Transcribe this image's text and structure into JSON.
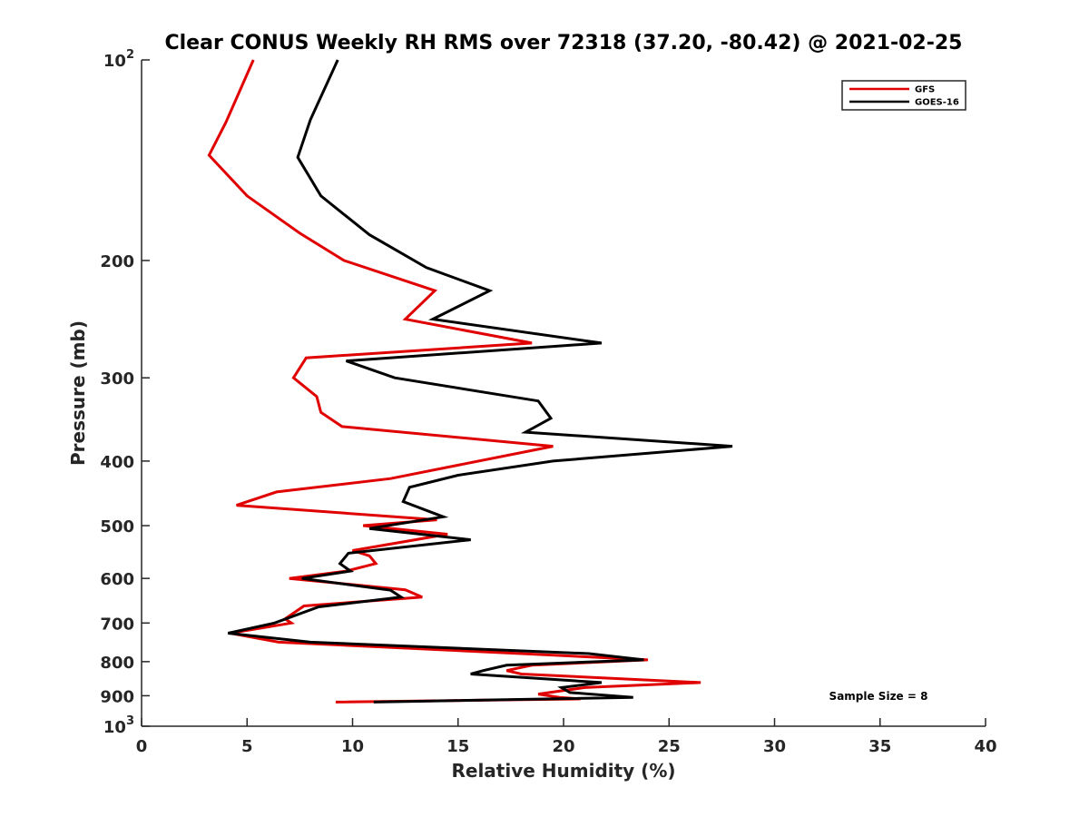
{
  "chart_data": {
    "type": "line",
    "title": "Clear CONUS Weekly RH RMS over 72318 (37.20, -80.42) @ 2021-02-25",
    "xlabel": "Relative Humidity (%)",
    "ylabel": "Pressure (mb)",
    "xlim": [
      0,
      40
    ],
    "ylim": [
      100,
      1000
    ],
    "y_scale": "log",
    "y_reversed": true,
    "grid": false,
    "legend_position": "top-right",
    "annotation": "Sample Size = 8",
    "x_ticks": [
      "0",
      "5",
      "10",
      "15",
      "20",
      "25",
      "30",
      "35",
      "40"
    ],
    "y_ticks": [
      {
        "value": 100,
        "base": "10",
        "exp": "2"
      },
      {
        "value": 200,
        "label": "200"
      },
      {
        "value": 300,
        "label": "300"
      },
      {
        "value": 400,
        "label": "400"
      },
      {
        "value": 500,
        "label": "500"
      },
      {
        "value": 600,
        "label": "600"
      },
      {
        "value": 700,
        "label": "700"
      },
      {
        "value": 800,
        "label": "800"
      },
      {
        "value": 900,
        "label": "900"
      },
      {
        "value": 1000,
        "base": "10",
        "exp": "3"
      }
    ],
    "series": [
      {
        "name": "GFS",
        "color": "#e00000",
        "points": [
          [
            5.3,
            100
          ],
          [
            4.0,
            124
          ],
          [
            3.2,
            139
          ],
          [
            5.0,
            160
          ],
          [
            7.5,
            182
          ],
          [
            9.6,
            200
          ],
          [
            13.9,
            222
          ],
          [
            12.5,
            245
          ],
          [
            18.5,
            266
          ],
          [
            7.8,
            280
          ],
          [
            7.2,
            300
          ],
          [
            8.3,
            320
          ],
          [
            8.5,
            338
          ],
          [
            9.5,
            355
          ],
          [
            19.5,
            380
          ],
          [
            11.8,
            425
          ],
          [
            6.4,
            445
          ],
          [
            4.5,
            466
          ],
          [
            14.0,
            490
          ],
          [
            10.5,
            500
          ],
          [
            14.5,
            515
          ],
          [
            10.0,
            545
          ],
          [
            10.8,
            555
          ],
          [
            11.1,
            570
          ],
          [
            9.7,
            585
          ],
          [
            7.0,
            600
          ],
          [
            12.5,
            624
          ],
          [
            13.3,
            640
          ],
          [
            7.7,
            660
          ],
          [
            6.8,
            690
          ],
          [
            7.1,
            700
          ],
          [
            4.2,
            725
          ],
          [
            6.5,
            748
          ],
          [
            18.0,
            778
          ],
          [
            24.0,
            795
          ],
          [
            18.5,
            810
          ],
          [
            17.3,
            825
          ],
          [
            18.0,
            835
          ],
          [
            26.5,
            860
          ],
          [
            21.0,
            875
          ],
          [
            18.8,
            895
          ],
          [
            19.8,
            905
          ],
          [
            20.8,
            910
          ],
          [
            9.2,
            920
          ]
        ]
      },
      {
        "name": "GOES-16",
        "color": "#000000",
        "points": [
          [
            9.3,
            100
          ],
          [
            8.0,
            123
          ],
          [
            7.4,
            140
          ],
          [
            8.5,
            160
          ],
          [
            10.8,
            183
          ],
          [
            13.5,
            205
          ],
          [
            16.5,
            222
          ],
          [
            13.8,
            245
          ],
          [
            21.8,
            266
          ],
          [
            9.7,
            283
          ],
          [
            12.0,
            300
          ],
          [
            18.8,
            325
          ],
          [
            19.4,
            345
          ],
          [
            18.2,
            362
          ],
          [
            28.0,
            380
          ],
          [
            19.5,
            400
          ],
          [
            15.0,
            420
          ],
          [
            12.7,
            438
          ],
          [
            12.4,
            460
          ],
          [
            14.3,
            485
          ],
          [
            10.8,
            505
          ],
          [
            15.6,
            525
          ],
          [
            9.8,
            550
          ],
          [
            9.4,
            570
          ],
          [
            9.9,
            585
          ],
          [
            7.6,
            600
          ],
          [
            11.8,
            625
          ],
          [
            12.3,
            640
          ],
          [
            8.4,
            662
          ],
          [
            6.3,
            700
          ],
          [
            4.1,
            725
          ],
          [
            8.0,
            748
          ],
          [
            21.2,
            778
          ],
          [
            23.8,
            795
          ],
          [
            17.3,
            810
          ],
          [
            16.2,
            825
          ],
          [
            15.6,
            835
          ],
          [
            21.8,
            860
          ],
          [
            19.9,
            875
          ],
          [
            20.3,
            890
          ],
          [
            23.3,
            905
          ],
          [
            11.0,
            920
          ]
        ]
      }
    ]
  }
}
